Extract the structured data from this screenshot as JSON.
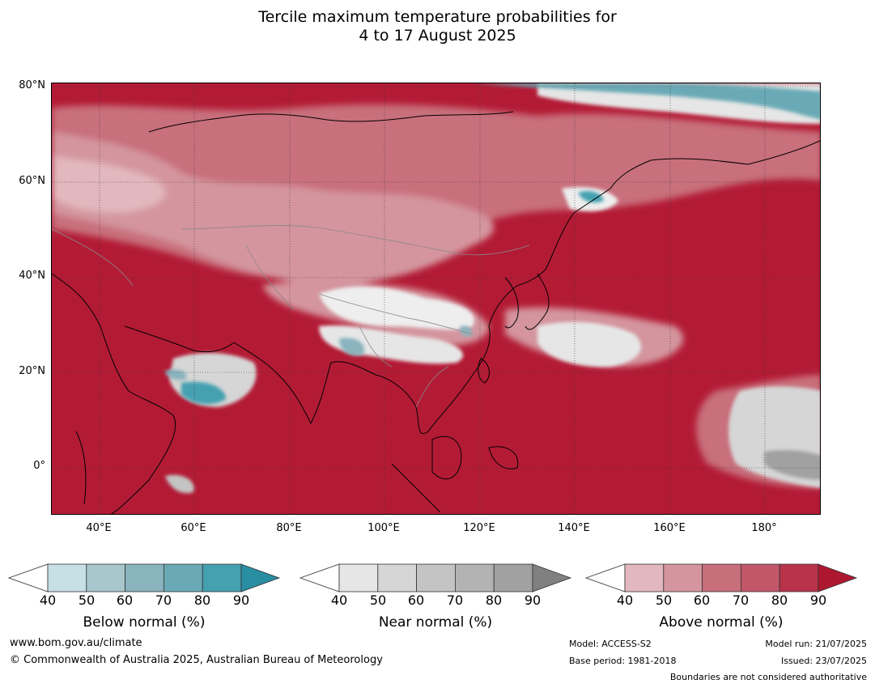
{
  "title": {
    "line1": "Tercile maximum temperature probabilities for",
    "line2": "4 to 17 August 2025"
  },
  "map": {
    "lat_labels": [
      "80°N",
      "60°N",
      "40°N",
      "20°N",
      "0°"
    ],
    "lon_labels": [
      "40°E",
      "60°E",
      "80°E",
      "100°E",
      "120°E",
      "140°E",
      "160°E",
      "180°"
    ],
    "background_color": "#b31b35"
  },
  "colorbars": [
    {
      "label": "Below normal (%)",
      "ticks": [
        "40",
        "50",
        "60",
        "70",
        "80",
        "90"
      ],
      "colors": [
        "#c6e0e6",
        "#a7c7cd",
        "#89b3bd",
        "#6aaab6",
        "#45a0b0",
        "#2a8ea3"
      ]
    },
    {
      "label": "Near normal (%)",
      "ticks": [
        "40",
        "50",
        "60",
        "70",
        "80",
        "90"
      ],
      "colors": [
        "#e6e6e6",
        "#d6d6d6",
        "#c4c4c4",
        "#b3b3b3",
        "#a1a1a1",
        "#808080"
      ]
    },
    {
      "label": "Above normal (%)",
      "ticks": [
        "40",
        "50",
        "60",
        "70",
        "80",
        "90"
      ],
      "colors": [
        "#e2b7bd",
        "#d4959e",
        "#c86f7c",
        "#c2576a",
        "#b8324a",
        "#ad1830"
      ]
    }
  ],
  "footer": {
    "url": "www.bom.gov.au/climate",
    "copyright": "© Commonwealth of Australia 2025, Australian Bureau of Meteorology",
    "model": "Model: ACCESS-S2",
    "base_period": "Base period: 1981-2018",
    "model_run": "Model run: 21/07/2025",
    "issued": "Issued: 23/07/2025",
    "disclaimer": "Boundaries are not considered authoritative"
  }
}
